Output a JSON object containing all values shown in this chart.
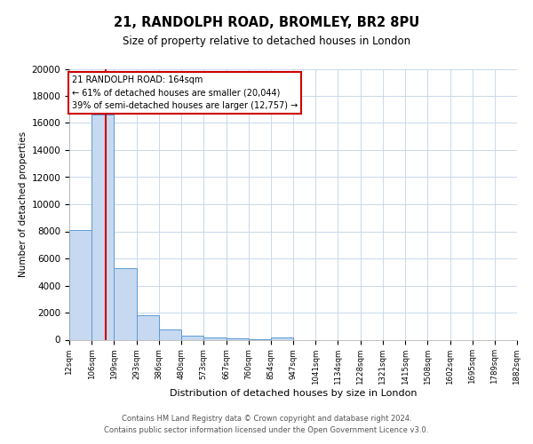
{
  "title": "21, RANDOLPH ROAD, BROMLEY, BR2 8PU",
  "subtitle": "Size of property relative to detached houses in London",
  "xlabel": "Distribution of detached houses by size in London",
  "ylabel": "Number of detached properties",
  "bar_color": "#c6d9f0",
  "bar_edge_color": "#5b9bd5",
  "marker_color": "#cc0000",
  "marker_value": 164,
  "annotation_title": "21 RANDOLPH ROAD: 164sqm",
  "annotation_line1": "← 61% of detached houses are smaller (20,044)",
  "annotation_line2": "39% of semi-detached houses are larger (12,757) →",
  "ylim": [
    0,
    20000
  ],
  "yticks": [
    0,
    2000,
    4000,
    6000,
    8000,
    10000,
    12000,
    14000,
    16000,
    18000,
    20000
  ],
  "bin_edges": [
    12,
    106,
    199,
    293,
    386,
    480,
    573,
    667,
    760,
    854,
    947,
    1041,
    1134,
    1228,
    1321,
    1415,
    1508,
    1602,
    1695,
    1789,
    1882
  ],
  "bin_labels": [
    "12sqm",
    "106sqm",
    "199sqm",
    "293sqm",
    "386sqm",
    "480sqm",
    "573sqm",
    "667sqm",
    "760sqm",
    "854sqm",
    "947sqm",
    "1041sqm",
    "1134sqm",
    "1228sqm",
    "1321sqm",
    "1415sqm",
    "1508sqm",
    "1602sqm",
    "1695sqm",
    "1789sqm",
    "1882sqm"
  ],
  "bar_heights": [
    8100,
    16600,
    5300,
    1800,
    750,
    300,
    175,
    100,
    50,
    150,
    0,
    0,
    0,
    0,
    0,
    0,
    0,
    0,
    0,
    0
  ],
  "footnote1": "Contains HM Land Registry data © Crown copyright and database right 2024.",
  "footnote2": "Contains public sector information licensed under the Open Government Licence v3.0.",
  "background_color": "#ffffff",
  "grid_color": "#c8d8ea"
}
